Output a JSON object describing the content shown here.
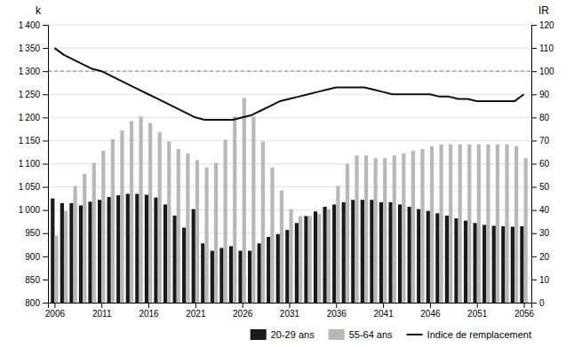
{
  "chart_data": {
    "type": "bar",
    "ylabel": "k",
    "y2label": "IR",
    "x": [
      2006,
      2007,
      2008,
      2009,
      2010,
      2011,
      2012,
      2013,
      2014,
      2015,
      2016,
      2017,
      2018,
      2019,
      2020,
      2021,
      2022,
      2023,
      2024,
      2025,
      2026,
      2027,
      2028,
      2029,
      2030,
      2031,
      2032,
      2033,
      2034,
      2035,
      2036,
      2037,
      2038,
      2039,
      2040,
      2041,
      2042,
      2043,
      2044,
      2045,
      2046,
      2047,
      2048,
      2049,
      2050,
      2051,
      2052,
      2053,
      2054,
      2055,
      2056
    ],
    "series": [
      {
        "name": "20-29 ans",
        "type": "bar",
        "color": "#1a1a1a",
        "values": [
          1025,
          1015,
          1015,
          1010,
          1018,
          1022,
          1028,
          1032,
          1035,
          1035,
          1033,
          1027,
          1012,
          988,
          962,
          1002,
          928,
          912,
          918,
          922,
          912,
          912,
          928,
          942,
          948,
          957,
          972,
          987,
          997,
          1007,
          1012,
          1017,
          1022,
          1022,
          1022,
          1017,
          1017,
          1012,
          1007,
          1002,
          998,
          993,
          988,
          982,
          977,
          972,
          968,
          966,
          965,
          964,
          965
        ]
      },
      {
        "name": "55-64 ans",
        "type": "bar",
        "color": "#b8b8b8",
        "values": [
          945,
          998,
          1052,
          1078,
          1102,
          1128,
          1153,
          1172,
          1192,
          1202,
          1188,
          1168,
          1148,
          1132,
          1122,
          1108,
          1092,
          1102,
          1152,
          1202,
          1242,
          1202,
          1148,
          1092,
          1042,
          1002,
          987,
          987,
          992,
          1002,
          1052,
          1100,
          1118,
          1118,
          1112,
          1112,
          1118,
          1122,
          1128,
          1132,
          1138,
          1142,
          1142,
          1142,
          1142,
          1142,
          1142,
          1142,
          1142,
          1138,
          1112
        ]
      },
      {
        "name": "Indice de remplacement",
        "type": "line",
        "color": "#111111",
        "axis": "y2",
        "values": [
          110,
          107,
          105,
          103,
          101,
          100,
          98,
          96,
          94,
          92,
          90,
          88,
          86,
          84,
          82,
          80,
          79,
          79,
          79,
          79,
          80,
          81,
          83,
          85,
          87,
          88,
          89,
          90,
          91,
          92,
          93,
          93,
          93,
          93,
          92,
          91,
          90,
          90,
          90,
          90,
          90,
          89,
          89,
          88,
          88,
          87,
          87,
          87,
          87,
          87,
          90
        ]
      }
    ],
    "xlim": [
      2005.3,
      2056.8
    ],
    "xticks": [
      2006,
      2011,
      2016,
      2021,
      2026,
      2031,
      2036,
      2041,
      2046,
      2051,
      2056
    ],
    "ylim": [
      800,
      1400
    ],
    "yticks": [
      800,
      850,
      900,
      950,
      {
        "value": 1000,
        "label": "1 000"
      },
      {
        "value": 1050,
        "label": "1 050"
      },
      {
        "value": 1100,
        "label": "1 100"
      },
      {
        "value": 1150,
        "label": "1 150"
      },
      {
        "value": 1200,
        "label": "1 200"
      },
      {
        "value": 1250,
        "label": "1 250"
      },
      {
        "value": 1300,
        "label": "1 300"
      },
      {
        "value": 1350,
        "label": "1 350"
      },
      {
        "value": 1400,
        "label": "1 400"
      }
    ],
    "y2lim": [
      0,
      120
    ],
    "y2ticks": [
      0,
      10,
      20,
      30,
      40,
      50,
      60,
      70,
      80,
      90,
      100,
      110,
      120
    ],
    "hlines": [
      1300
    ],
    "grid": true,
    "legend": "lower right"
  }
}
